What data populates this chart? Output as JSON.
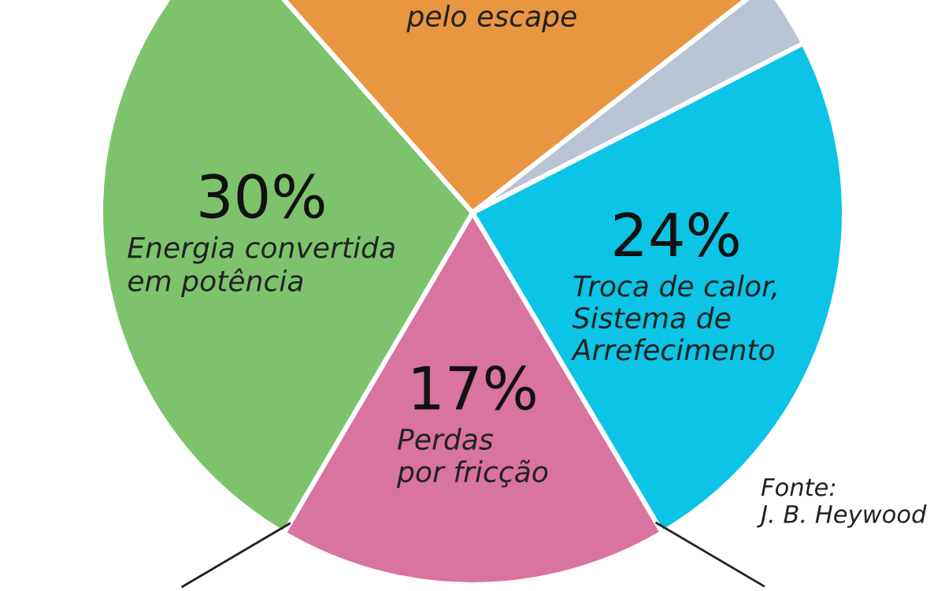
{
  "chart_data": {
    "type": "pie",
    "categories": [
      "pelo escape",
      null,
      "Troca de calor,\nSistema de\nArrefecimento",
      "Perdas\npor fricção",
      "Energia convertida\nem potência"
    ],
    "values": [
      26,
      3,
      24,
      17,
      30
    ],
    "value_labels": [
      null,
      null,
      "24%",
      "17%",
      "30%"
    ],
    "colors": [
      "#e8963f",
      "#b8c4d4",
      "#0bc4e6",
      "#d9739f",
      "#7dc36b"
    ],
    "annotations": [
      "Fonte:\nJ. B. Heywood"
    ]
  }
}
